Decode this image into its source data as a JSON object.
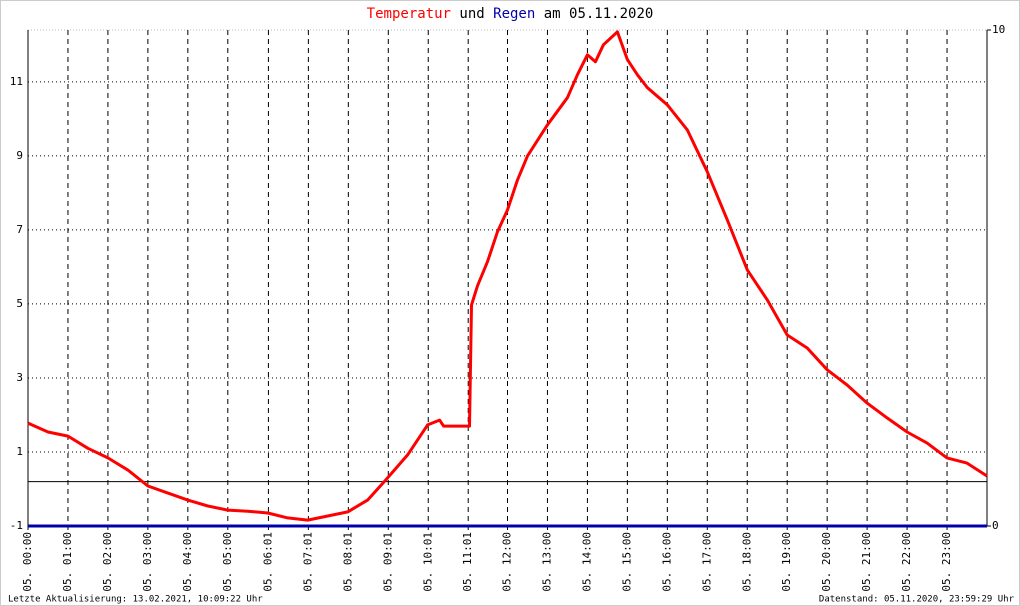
{
  "chart_data": {
    "type": "line",
    "title_parts": [
      "und",
      "am 05.11.2020"
    ],
    "footer_left": "Letzte Aktualisierung: 13.02.2021, 10:09:22 Uhr",
    "footer_right": "Datenstand: 05.11.2020, 23:59:29 Uhr",
    "xlim": [
      0,
      24
    ],
    "xticks": [
      {
        "value": 0,
        "label": "05. 00:00"
      },
      {
        "value": 1,
        "label": "05. 01:00"
      },
      {
        "value": 2,
        "label": "05. 02:00"
      },
      {
        "value": 3,
        "label": "05. 03:00"
      },
      {
        "value": 4,
        "label": "05. 04:00"
      },
      {
        "value": 5,
        "label": "05. 05:00"
      },
      {
        "value": 6.0167,
        "label": "05. 06:01"
      },
      {
        "value": 7.0167,
        "label": "05. 07:01"
      },
      {
        "value": 8.0167,
        "label": "05. 08:01"
      },
      {
        "value": 9.0167,
        "label": "05. 09:01"
      },
      {
        "value": 10.0167,
        "label": "05. 10:01"
      },
      {
        "value": 11.0167,
        "label": "05. 11:01"
      },
      {
        "value": 12,
        "label": "05. 12:00"
      },
      {
        "value": 13,
        "label": "05. 13:00"
      },
      {
        "value": 14,
        "label": "05. 14:00"
      },
      {
        "value": 15,
        "label": "05. 15:00"
      },
      {
        "value": 16,
        "label": "05. 16:00"
      },
      {
        "value": 17,
        "label": "05. 17:00"
      },
      {
        "value": 18,
        "label": "05. 18:00"
      },
      {
        "value": 19,
        "label": "05. 19:00"
      },
      {
        "value": 20,
        "label": "05. 20:00"
      },
      {
        "value": 21,
        "label": "05. 21:00"
      },
      {
        "value": 22,
        "label": "05. 22:00"
      },
      {
        "value": 23,
        "label": "05. 23:00"
      }
    ],
    "ylim": [
      -1,
      12.4
    ],
    "yticks": [
      -1,
      1,
      3,
      5,
      7,
      9,
      11
    ],
    "y2lim": [
      0,
      10
    ],
    "y2ticks": [
      0,
      10
    ],
    "reference_line": 0.2,
    "grid": true,
    "series": [
      {
        "name": "Temperatur",
        "color": "#ff0000",
        "axis": "y",
        "x": [
          0,
          0.5,
          1,
          1.5,
          2,
          2.5,
          3,
          3.5,
          4,
          4.5,
          5,
          5.5,
          6,
          6.5,
          7,
          7.5,
          8,
          8.5,
          9,
          9.5,
          10,
          10.3,
          10.4,
          11,
          11.05,
          11.1,
          11.25,
          11.5,
          11.75,
          12,
          12.25,
          12.5,
          13,
          13.5,
          13.75,
          14,
          14.2,
          14.4,
          14.75,
          15,
          15.25,
          15.5,
          16,
          16.5,
          17,
          17.5,
          18,
          18.5,
          19,
          19.5,
          20,
          20.5,
          21,
          21.5,
          22,
          22.5,
          23,
          23.5,
          24
        ],
        "values": [
          1.78,
          1.54,
          1.43,
          1.1,
          0.84,
          0.51,
          0.08,
          -0.11,
          -0.3,
          -0.46,
          -0.57,
          -0.6,
          -0.65,
          -0.78,
          -0.84,
          -0.73,
          -0.62,
          -0.3,
          0.3,
          0.92,
          1.73,
          1.86,
          1.7,
          1.7,
          1.7,
          4.97,
          5.49,
          6.14,
          6.95,
          7.54,
          8.35,
          9.0,
          9.84,
          10.57,
          11.19,
          11.73,
          11.54,
          12.0,
          12.35,
          11.6,
          11.19,
          10.84,
          10.38,
          9.7,
          8.57,
          7.27,
          5.92,
          5.11,
          4.16,
          3.81,
          3.22,
          2.81,
          2.32,
          1.92,
          1.54,
          1.24,
          0.84,
          0.7,
          0.35
        ]
      },
      {
        "name": "Regen",
        "color": "#0000aa",
        "axis": "y2",
        "x": [
          0,
          24
        ],
        "values": [
          0,
          0
        ]
      }
    ]
  }
}
